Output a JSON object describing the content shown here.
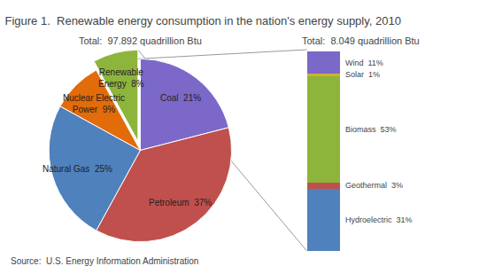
{
  "chart_data": [
    {
      "type": "pie",
      "title": "Figure 1.  Renewable energy consumption in the nation's energy supply, 2010",
      "subtitle": "Total:  97.892 quadrillion Btu",
      "categories": [
        "Coal  21%",
        "Petroleum  37%",
        "Natural Gas  25%",
        "Nuclear Electric\nPower  9%",
        "Renewable\nEnergy  8%"
      ],
      "values": [
        21,
        37,
        25,
        9,
        8
      ],
      "colors": [
        "#7B68C8",
        "#C0504D",
        "#4F81BD",
        "#E26B0A",
        "#8DB53C"
      ],
      "annotations": [
        "Source:  U.S. Energy Information Administration"
      ]
    },
    {
      "type": "bar",
      "stacked": true,
      "title": "Total:  8.049 quadrillion Btu",
      "categories": [
        null
      ],
      "series": [
        {
          "name": "Hydroelectric  31%",
          "color": "#4F81BD",
          "values": [
            31
          ]
        },
        {
          "name": "Geothermal  3%",
          "color": "#C0504D",
          "values": [
            3
          ]
        },
        {
          "name": "Biomass  53%",
          "color": "#8DB53C",
          "values": [
            53
          ]
        },
        {
          "name": "Solar  1%",
          "color": "#CDB32A",
          "values": [
            1
          ]
        },
        {
          "name": "Wind  11%",
          "color": "#7B68C8",
          "values": [
            11
          ]
        }
      ],
      "ylim": [
        0,
        100
      ],
      "tick_labels": false,
      "grid": false
    }
  ]
}
